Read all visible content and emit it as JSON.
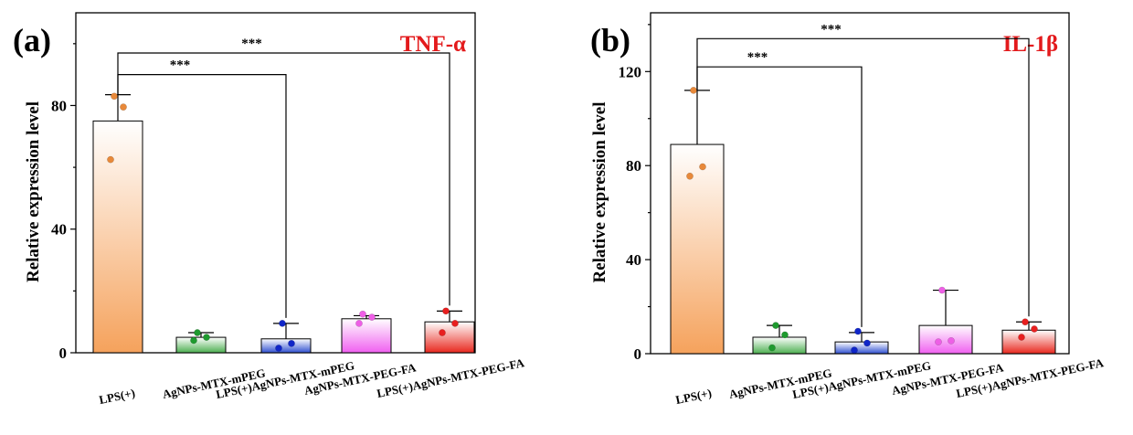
{
  "chart_data": [
    {
      "type": "bar",
      "panel_label": "(a)",
      "title": "TNF-α",
      "ylabel": "Relative expression level",
      "xlabel": "",
      "ylim": [
        0,
        110
      ],
      "yticks": [
        0,
        40,
        80
      ],
      "grid": false,
      "categories": [
        "LPS(+)",
        "AgNPs-MTX-mPEG",
        "LPS(+)AgNPs-MTX-mPEG",
        "AgNPs-MTX-PEG-FA",
        "LPS(+)AgNPs-MTX-PEG-FA"
      ],
      "values": [
        75,
        5,
        4.5,
        11,
        10
      ],
      "errors": [
        8.5,
        1.5,
        5,
        1,
        3.5
      ],
      "points": [
        [
          83,
          79.5,
          62.5
        ],
        [
          6.5,
          5,
          4
        ],
        [
          9.5,
          3,
          1.5
        ],
        [
          12.5,
          11.5,
          9.5
        ],
        [
          13.5,
          9.5,
          6.5
        ]
      ],
      "colors": [
        "#f5a25c",
        "#4caf50",
        "#3050d0",
        "#f060f0",
        "#e8281e"
      ],
      "point_colors": [
        "#e8893a",
        "#1e9a2e",
        "#1026c8",
        "#ee5fe6",
        "#e81f1f"
      ],
      "significance": [
        {
          "from": 0,
          "to": 2,
          "y": 90,
          "label": "***"
        },
        {
          "from": 0,
          "to": 4,
          "y": 97,
          "label": "***"
        }
      ]
    },
    {
      "type": "bar",
      "panel_label": "(b)",
      "title": "IL-1β",
      "ylabel": "Relative expression level",
      "xlabel": "",
      "ylim": [
        0,
        145
      ],
      "yticks": [
        0,
        40,
        80,
        120
      ],
      "grid": false,
      "categories": [
        "LPS(+)",
        "AgNPs-MTX-mPEG",
        "LPS(+)AgNPs-MTX-mPEG",
        "AgNPs-MTX-PEG-FA",
        "LPS(+)AgNPs-MTX-PEG-FA"
      ],
      "values": [
        89,
        7,
        5,
        12,
        10
      ],
      "errors": [
        23,
        5,
        4,
        15,
        3.5
      ],
      "points": [
        [
          112,
          79.5,
          75.5
        ],
        [
          12,
          8,
          2.5
        ],
        [
          9.5,
          4.5,
          1.5
        ],
        [
          27,
          5.5,
          5
        ],
        [
          13.5,
          10.5,
          7
        ]
      ],
      "colors": [
        "#f5a25c",
        "#4caf50",
        "#3050d0",
        "#f060f0",
        "#e8281e"
      ],
      "point_colors": [
        "#e8893a",
        "#1e9a2e",
        "#1026c8",
        "#ee5fe6",
        "#e81f1f"
      ],
      "significance": [
        {
          "from": 0,
          "to": 2,
          "y": 122,
          "label": "***"
        },
        {
          "from": 0,
          "to": 4,
          "y": 134,
          "label": "***"
        }
      ]
    }
  ]
}
